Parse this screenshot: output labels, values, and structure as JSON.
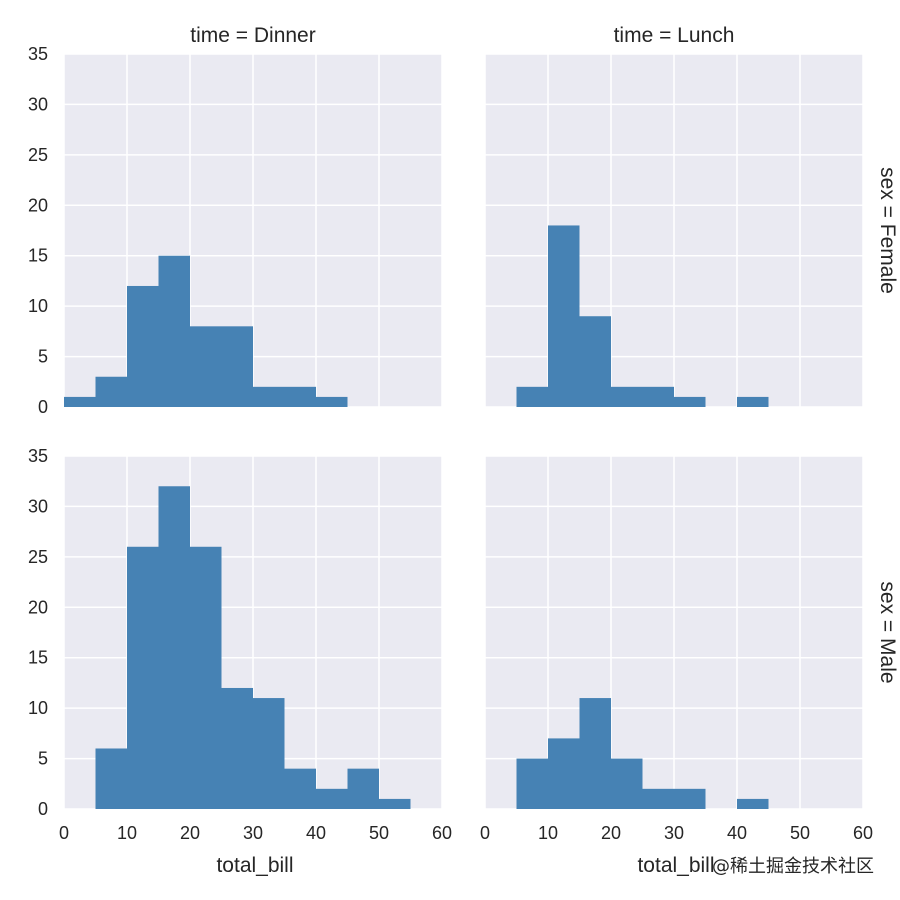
{
  "chart_data": {
    "type": "histogram-facet-grid",
    "facet_grid": {
      "rows": "sex",
      "cols": "time"
    },
    "xlabel": "total_bill",
    "ylabel": "",
    "xlim": [
      0,
      60
    ],
    "ylim": [
      0,
      35
    ],
    "xticks": [
      0,
      10,
      20,
      30,
      40,
      50,
      60
    ],
    "yticks": [
      0,
      5,
      10,
      15,
      20,
      25,
      30,
      35
    ],
    "bin_width": 5,
    "grid": true,
    "bar_color": "#4682b4",
    "panel_background": "#eaeaf2",
    "col_titles": [
      "time = Dinner",
      "time = Lunch"
    ],
    "row_titles": [
      "sex = Female",
      "sex = Male"
    ],
    "panels": [
      {
        "row": 0,
        "col": 0,
        "title": "time = Dinner",
        "bins": [
          [
            0,
            1
          ],
          [
            5,
            3
          ],
          [
            10,
            12
          ],
          [
            15,
            15
          ],
          [
            20,
            8
          ],
          [
            25,
            8
          ],
          [
            30,
            2
          ],
          [
            35,
            2
          ],
          [
            40,
            1
          ]
        ]
      },
      {
        "row": 0,
        "col": 1,
        "title": "time = Lunch",
        "bins": [
          [
            5,
            2
          ],
          [
            10,
            18
          ],
          [
            15,
            9
          ],
          [
            20,
            2
          ],
          [
            25,
            2
          ],
          [
            30,
            1
          ],
          [
            40,
            1
          ]
        ]
      },
      {
        "row": 1,
        "col": 0,
        "bins": [
          [
            5,
            6
          ],
          [
            10,
            26
          ],
          [
            15,
            32
          ],
          [
            20,
            26
          ],
          [
            25,
            12
          ],
          [
            30,
            11
          ],
          [
            35,
            4
          ],
          [
            40,
            2
          ],
          [
            45,
            4
          ],
          [
            50,
            1
          ]
        ]
      },
      {
        "row": 1,
        "col": 1,
        "bins": [
          [
            5,
            5
          ],
          [
            10,
            7
          ],
          [
            15,
            11
          ],
          [
            20,
            5
          ],
          [
            25,
            2
          ],
          [
            30,
            2
          ],
          [
            40,
            1
          ]
        ]
      }
    ]
  },
  "watermark": "@稀土掘金技术社区"
}
